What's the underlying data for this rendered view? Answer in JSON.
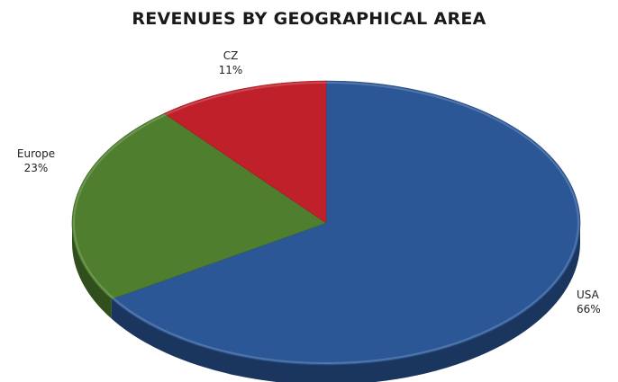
{
  "chart_data": {
    "type": "pie",
    "title": "REVENUES BY GEOGRAPHICAL AREA",
    "slices": [
      {
        "label": "USA",
        "percent_label": "66%",
        "value": 66,
        "color": "#2b5797"
      },
      {
        "label": "Europe",
        "percent_label": "23%",
        "value": 23,
        "color": "#4f7f2e"
      },
      {
        "label": "CZ",
        "percent_label": "11%",
        "value": 11,
        "color": "#c0202a"
      }
    ],
    "style": "3d",
    "legend": "none"
  }
}
